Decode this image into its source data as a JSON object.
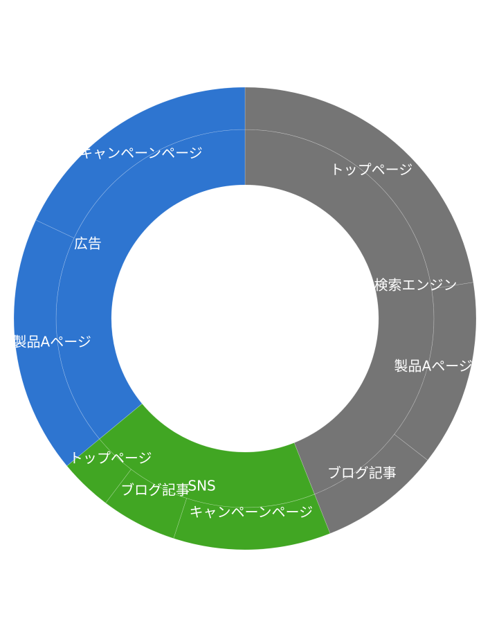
{
  "chart_data": {
    "type": "sunburst",
    "title": "",
    "colors": {
      "検索エンジン": "#757575",
      "広告": "#2e75d0",
      "SNS": "#41a623"
    },
    "inner": [
      {
        "name": "検索エンジン",
        "value": 44
      },
      {
        "name": "SNS",
        "value": 20
      },
      {
        "name": "広告",
        "value": 36
      }
    ],
    "outer": [
      {
        "parent": "検索エンジン",
        "name": "トップページ",
        "value": 22.5
      },
      {
        "parent": "検索エンジン",
        "name": "製品Aページ",
        "value": 13
      },
      {
        "parent": "検索エンジン",
        "name": "ブログ記事",
        "value": 8.5
      },
      {
        "parent": "SNS",
        "name": "キャンペーンページ",
        "value": 11
      },
      {
        "parent": "SNS",
        "name": "ブログ記事",
        "value": 5.3
      },
      {
        "parent": "SNS",
        "name": "トップページ",
        "value": 3.7
      },
      {
        "parent": "広告",
        "name": "製品Aページ",
        "value": 18
      },
      {
        "parent": "広告",
        "name": "キャンペーンページ",
        "value": 18
      }
    ]
  }
}
